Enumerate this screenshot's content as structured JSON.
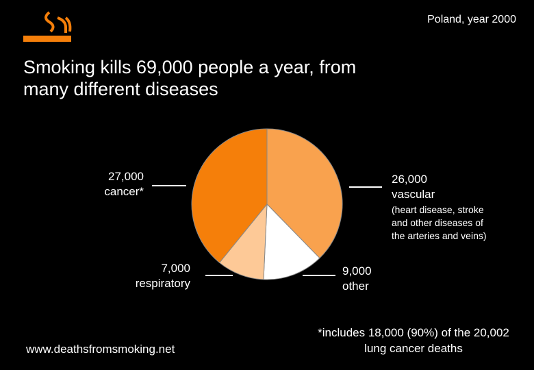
{
  "chart_data": {
    "type": "pie",
    "title": "Smoking kills 69,000 people a year, from many different diseases",
    "subtitle": "Poland, year 2000",
    "categories": [
      "vascular",
      "other",
      "respiratory",
      "cancer*"
    ],
    "values": [
      26000,
      9000,
      7000,
      27000
    ],
    "value_labels": [
      "26,000",
      "9,000",
      "7,000",
      "27,000"
    ],
    "colors": [
      "#f9a24e",
      "#ffffff",
      "#fdc997",
      "#f57f0a"
    ],
    "annotation": "(heart disease, stroke and other diseases of the arteries and veins)",
    "footnote": "*includes 18,000 (90%) of the 20,002 lung cancer deaths",
    "source": "www.deathsfromsmoking.net"
  }
}
